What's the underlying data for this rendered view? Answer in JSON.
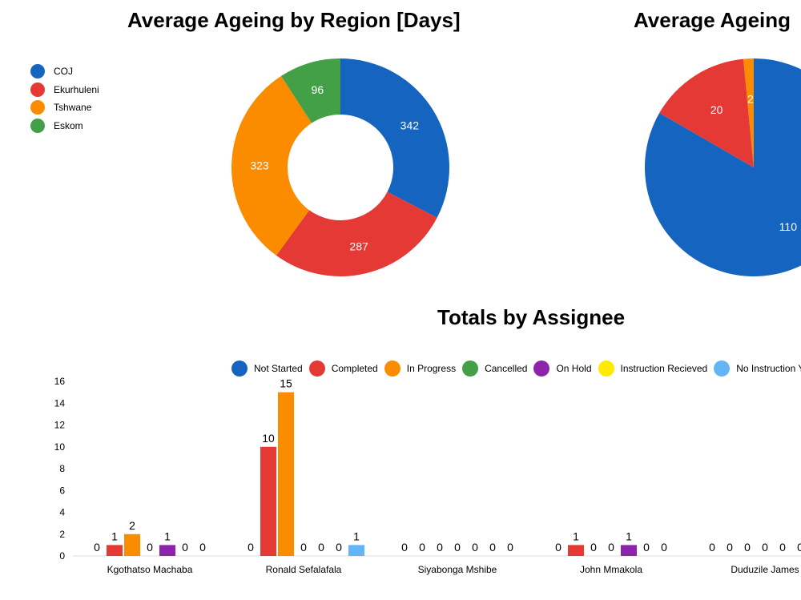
{
  "chart_data": [
    {
      "type": "pie",
      "variant": "donut",
      "title": "Average Ageing by Region [Days]",
      "legend": "left",
      "slices": [
        {
          "label": "COJ",
          "value": 342,
          "color": "#1565c0"
        },
        {
          "label": "Ekurhuleni",
          "value": 287,
          "color": "#e53935"
        },
        {
          "label": "Tshwane",
          "value": 323,
          "color": "#fb8c00"
        },
        {
          "label": "Eskom",
          "value": 96,
          "color": "#43a047"
        }
      ]
    },
    {
      "type": "pie",
      "title": "Average Ageing",
      "slices": [
        {
          "label": "",
          "value": 110,
          "color": "#1565c0"
        },
        {
          "label": "",
          "value": 20,
          "color": "#e53935"
        },
        {
          "label": "",
          "value": 2,
          "color": "#fb8c00"
        }
      ]
    },
    {
      "type": "bar",
      "title": "Totals by Assignee",
      "legend": "top",
      "ylim": [
        0,
        16
      ],
      "yticks": [
        0,
        2,
        4,
        6,
        8,
        10,
        12,
        14,
        16
      ],
      "categories": [
        "Kgothatso Machaba",
        "Ronald Sefalafala",
        "Siyabonga Mshibe",
        "John Mmakola",
        "Duduzile James"
      ],
      "series": [
        {
          "name": "Not Started",
          "color": "#1565c0",
          "values": [
            0,
            0,
            0,
            0,
            0
          ]
        },
        {
          "name": "Completed",
          "color": "#e53935",
          "values": [
            1,
            10,
            0,
            1,
            0
          ]
        },
        {
          "name": "In Progress",
          "color": "#fb8c00",
          "values": [
            2,
            15,
            0,
            0,
            0
          ]
        },
        {
          "name": "Cancelled",
          "color": "#43a047",
          "values": [
            0,
            0,
            0,
            0,
            0
          ]
        },
        {
          "name": "On Hold",
          "color": "#8e24aa",
          "values": [
            1,
            0,
            0,
            1,
            0
          ]
        },
        {
          "name": "Instruction Recieved",
          "color": "#ffeb00",
          "values": [
            0,
            0,
            0,
            0,
            0
          ]
        },
        {
          "name": "No Instruction Y",
          "color": "#64b5f6",
          "values": [
            0,
            1,
            0,
            0,
            0
          ]
        }
      ]
    }
  ]
}
